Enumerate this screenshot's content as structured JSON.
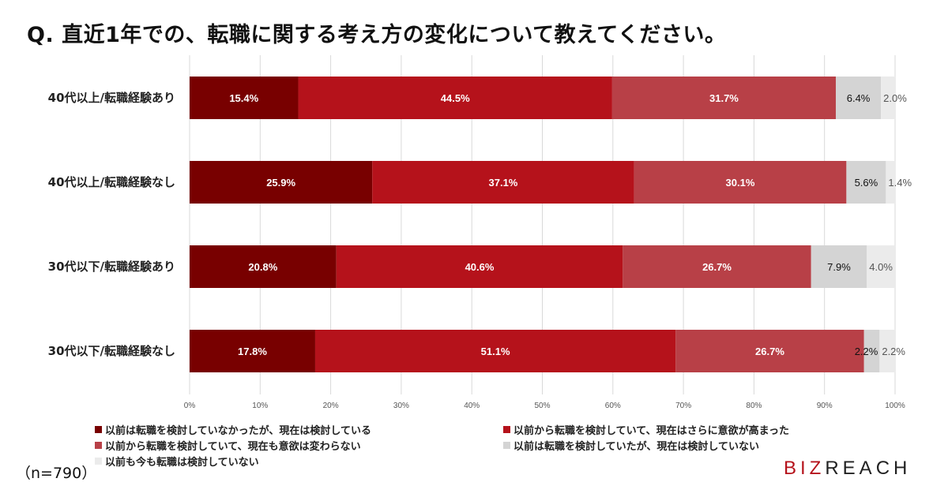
{
  "title": "Q. 直近1年での、転職に関する考え方の変化について教えてください。",
  "sample_size": "（n=790）",
  "logo": {
    "part1": "BIZ",
    "part2": "REACH"
  },
  "chart_data": {
    "type": "bar",
    "orientation": "horizontal",
    "stacked": true,
    "title": "Q. 直近1年での、転職に関する考え方の変化について教えてください。",
    "categories": [
      "40代以上/転職経験あり",
      "40代以上/転職経験なし",
      "30代以下/転職経験あり",
      "30代以下/転職経験なし"
    ],
    "series": [
      {
        "name": "以前は転職を検討していなかったが、現在は検討している",
        "color": "#780000",
        "values": [
          15.4,
          25.9,
          20.8,
          17.8
        ]
      },
      {
        "name": "以前から転職を検討していて、現在はさらに意欲が高まった",
        "color": "#b5121b",
        "values": [
          44.5,
          37.1,
          40.6,
          51.1
        ]
      },
      {
        "name": "以前から転職を検討していて、現在も意欲は変わらない",
        "color": "#b84047",
        "values": [
          31.7,
          30.1,
          26.7,
          26.7
        ]
      },
      {
        "name": "以前は転職を検討していたが、現在は検討していない",
        "color": "#d4d4d4",
        "values": [
          6.4,
          5.6,
          7.9,
          2.2
        ]
      },
      {
        "name": "以前も今も転職は検討していない",
        "color": "#ebebeb",
        "values": [
          2.0,
          1.4,
          4.0,
          2.2
        ]
      }
    ],
    "xlim": [
      0,
      100
    ],
    "xticks": [
      "0%",
      "10%",
      "20%",
      "30%",
      "40%",
      "50%",
      "60%",
      "70%",
      "80%",
      "90%",
      "100%"
    ],
    "grid": true,
    "legend_position": "bottom"
  }
}
